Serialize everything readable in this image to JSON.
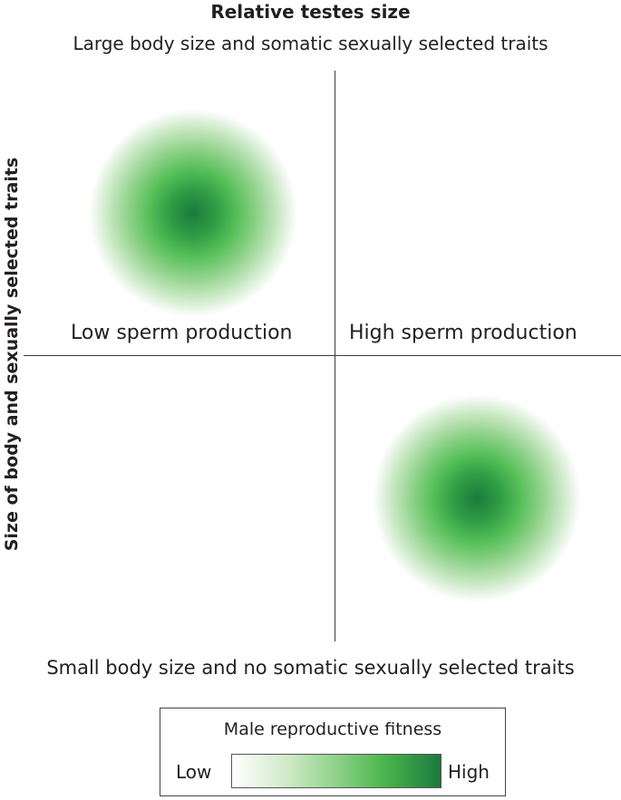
{
  "header": {
    "title": "Relative testes size",
    "subtitle": "Large body size and somatic sexually selected traits"
  },
  "y_axis": {
    "label": "Size of body and sexually selected traits"
  },
  "quadrants": {
    "left_label": "Low sperm production",
    "right_label": "High sperm production"
  },
  "footer": {
    "subtitle": "Small body size and no somatic sexually selected traits"
  },
  "legend": {
    "title": "Male reproductive fitness",
    "low": "Low",
    "high": "High",
    "colors": [
      "#ffffff",
      "#8fd28a",
      "#1b7a3c"
    ]
  }
}
